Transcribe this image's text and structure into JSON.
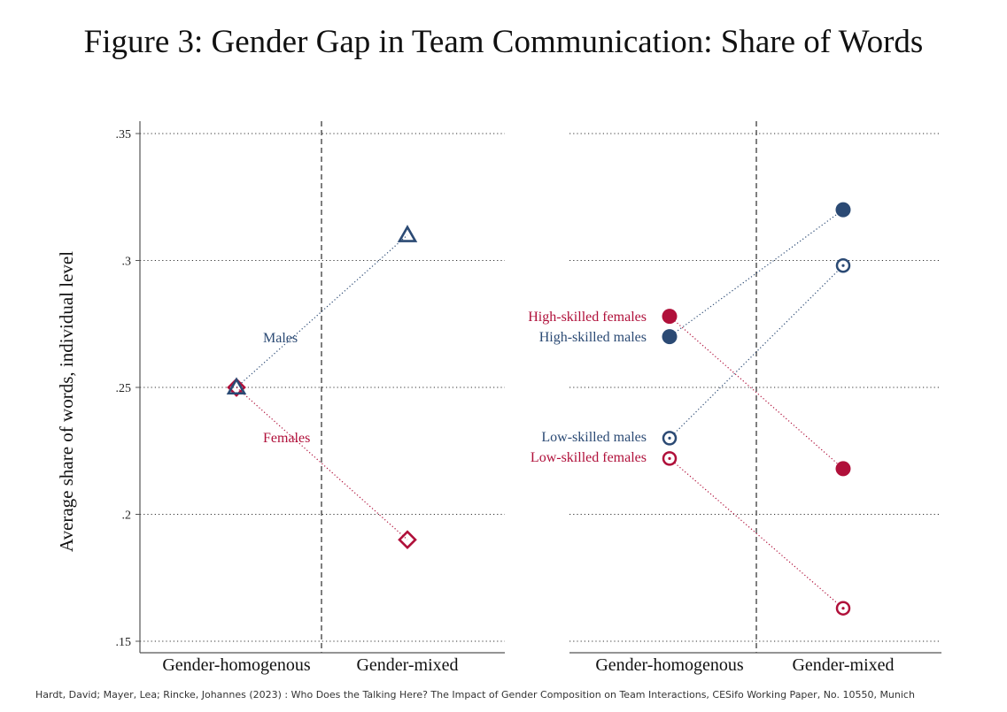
{
  "title": "Figure 3: Gender Gap in Team Communication: Share of Words",
  "source": "Hardt, David; Mayer, Lea; Rincke, Johannes (2023) : Who Does the Talking Here? The Impact of Gender Composition on Team Interactions, CESifo Working Paper, No. 10550, Munich",
  "colors": {
    "male": "#2b4a74",
    "female": "#b0103a",
    "grid": "#333333",
    "axis": "#555555"
  },
  "chart_data": [
    {
      "type": "scatter",
      "panel": "left",
      "ylabel": "Average share of words, individual level",
      "categories": [
        "Gender-homogenous",
        "Gender-mixed"
      ],
      "ylim": [
        0.15,
        0.35
      ],
      "yticks": [
        0.15,
        0.2,
        0.25,
        0.3,
        0.35
      ],
      "ytick_labels": [
        ".15",
        ".2",
        ".25",
        ".3",
        ".35"
      ],
      "grid": true,
      "series": [
        {
          "name": "Males",
          "label": "Males",
          "color_key": "male",
          "marker": "triangle-open",
          "values": [
            0.25,
            0.31
          ]
        },
        {
          "name": "Females",
          "label": "Females",
          "color_key": "female",
          "marker": "diamond-open",
          "values": [
            0.25,
            0.19
          ]
        }
      ]
    },
    {
      "type": "scatter",
      "panel": "right",
      "categories": [
        "Gender-homogenous",
        "Gender-mixed"
      ],
      "ylim": [
        0.15,
        0.35
      ],
      "yticks": [
        0.15,
        0.2,
        0.25,
        0.3,
        0.35
      ],
      "grid": true,
      "series": [
        {
          "name": "High-skilled females",
          "label": "High-skilled females",
          "color_key": "female",
          "marker": "circle-filled",
          "values": [
            0.278,
            0.218
          ]
        },
        {
          "name": "High-skilled males",
          "label": "High-skilled males",
          "color_key": "male",
          "marker": "circle-filled",
          "values": [
            0.27,
            0.32
          ]
        },
        {
          "name": "Low-skilled males",
          "label": "Low-skilled males",
          "color_key": "male",
          "marker": "circle-open-dot",
          "values": [
            0.23,
            0.298
          ]
        },
        {
          "name": "Low-skilled females",
          "label": "Low-skilled females",
          "color_key": "female",
          "marker": "circle-open-dot",
          "values": [
            0.222,
            0.163
          ]
        }
      ]
    }
  ]
}
